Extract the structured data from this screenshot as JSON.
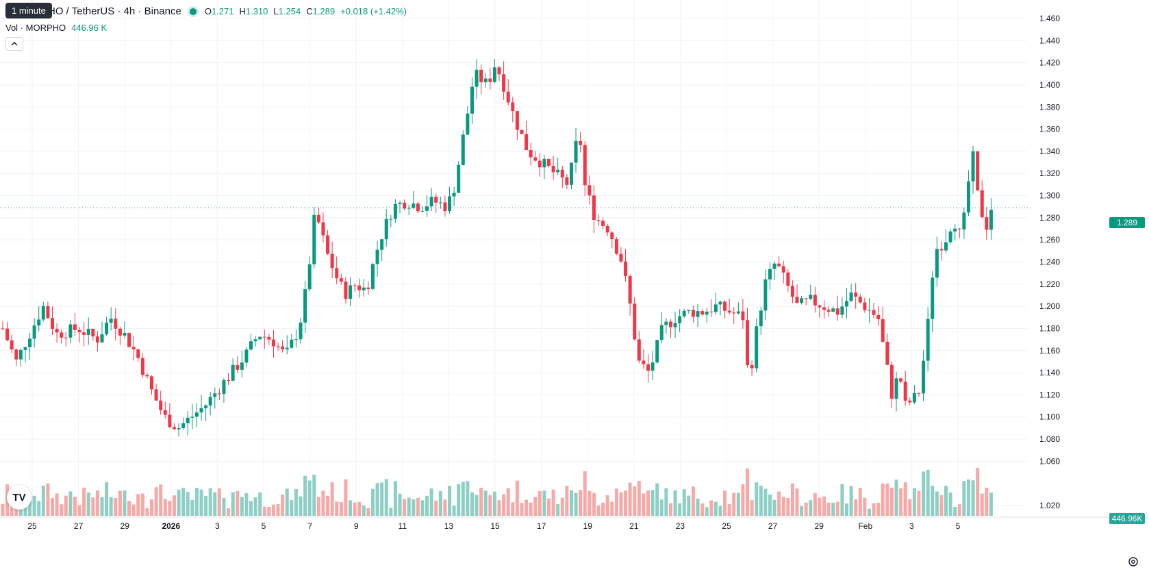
{
  "tooltip": "1 minute",
  "header": {
    "symbol": "HO / TetherUS · 4h · Binance",
    "o_label": "O",
    "o_value": "1.271",
    "h_label": "H",
    "h_value": "1.310",
    "l_label": "L",
    "l_value": "1.254",
    "c_label": "C",
    "c_value": "1.289",
    "change": "+0.018 (+1.42%)"
  },
  "volume_legend": {
    "label": "Vol · MORPHO",
    "value": "446.96 K"
  },
  "price_tags": {
    "last_price": "1.289",
    "last_volume": "446.96K"
  },
  "colors": {
    "up": "#089981",
    "down": "#F23645",
    "up_vol": "#8DCFC4",
    "down_vol": "#F7A9A7"
  },
  "icons": {
    "logo": "tradingview-logo-icon",
    "collapse": "chevron-up-icon",
    "settings": "gear-icon"
  },
  "chart_data": {
    "type": "candlestick",
    "y_axis_labels": [
      "1.460",
      "1.440",
      "1.420",
      "1.400",
      "1.380",
      "1.360",
      "1.340",
      "1.320",
      "1.300",
      "1.280",
      "1.260",
      "1.240",
      "1.220",
      "1.200",
      "1.180",
      "1.160",
      "1.140",
      "1.120",
      "1.100",
      "1.080",
      "1.060",
      "1.020"
    ],
    "ylim": [
      1.01,
      1.47
    ],
    "x_axis_labels": [
      "25",
      "27",
      "29",
      "2026",
      "3",
      "5",
      "7",
      "9",
      "11",
      "13",
      "15",
      "17",
      "19",
      "21",
      "23",
      "25",
      "27",
      "29",
      "Feb",
      "3",
      "5"
    ],
    "last_price": 1.289,
    "grid": true,
    "close_path": [
      [
        0,
        1.18
      ],
      [
        0.5,
        1.15
      ],
      [
        1.0,
        1.175
      ],
      [
        1.5,
        1.2
      ],
      [
        2.0,
        1.175
      ],
      [
        2.8,
        1.18
      ],
      [
        3.5,
        1.17
      ],
      [
        4.0,
        1.19
      ],
      [
        4.5,
        1.175
      ],
      [
        5.0,
        1.155
      ],
      [
        5.5,
        1.125
      ],
      [
        6.0,
        1.1
      ],
      [
        6.5,
        1.09
      ],
      [
        7.0,
        1.1
      ],
      [
        7.5,
        1.11
      ],
      [
        8.0,
        1.125
      ],
      [
        8.5,
        1.14
      ],
      [
        9.0,
        1.155
      ],
      [
        9.5,
        1.175
      ],
      [
        10.0,
        1.17
      ],
      [
        10.5,
        1.155
      ],
      [
        11.0,
        1.18
      ],
      [
        11.3,
        1.22
      ],
      [
        11.6,
        1.285
      ],
      [
        11.8,
        1.27
      ],
      [
        12.0,
        1.25
      ],
      [
        12.5,
        1.22
      ],
      [
        12.8,
        1.21
      ],
      [
        13.0,
        1.22
      ],
      [
        13.5,
        1.215
      ],
      [
        14.0,
        1.26
      ],
      [
        14.5,
        1.29
      ],
      [
        15.0,
        1.295
      ],
      [
        15.5,
        1.29
      ],
      [
        16.0,
        1.295
      ],
      [
        16.5,
        1.29
      ],
      [
        16.8,
        1.31
      ],
      [
        17.0,
        1.34
      ],
      [
        17.3,
        1.38
      ],
      [
        17.5,
        1.41
      ],
      [
        18.0,
        1.4
      ],
      [
        18.3,
        1.42
      ],
      [
        18.6,
        1.4
      ],
      [
        19.0,
        1.37
      ],
      [
        19.5,
        1.34
      ],
      [
        20.0,
        1.33
      ],
      [
        20.5,
        1.32
      ],
      [
        21.0,
        1.31
      ],
      [
        21.4,
        1.36
      ],
      [
        21.6,
        1.31
      ],
      [
        22.0,
        1.28
      ],
      [
        22.5,
        1.27
      ],
      [
        23.0,
        1.24
      ],
      [
        23.3,
        1.2
      ],
      [
        23.6,
        1.15
      ],
      [
        24.0,
        1.14
      ],
      [
        24.5,
        1.18
      ],
      [
        25.0,
        1.19
      ],
      [
        25.5,
        1.195
      ],
      [
        26.0,
        1.195
      ],
      [
        26.5,
        1.2
      ],
      [
        27.0,
        1.195
      ],
      [
        27.5,
        1.19
      ],
      [
        27.7,
        1.13
      ],
      [
        28.0,
        1.18
      ],
      [
        28.3,
        1.22
      ],
      [
        28.7,
        1.24
      ],
      [
        29.0,
        1.225
      ],
      [
        29.5,
        1.2
      ],
      [
        30.0,
        1.205
      ],
      [
        30.5,
        1.2
      ],
      [
        31.0,
        1.195
      ],
      [
        31.5,
        1.21
      ],
      [
        32.0,
        1.2
      ],
      [
        32.5,
        1.19
      ],
      [
        32.8,
        1.15
      ],
      [
        33.0,
        1.12
      ],
      [
        33.3,
        1.14
      ],
      [
        33.5,
        1.11
      ],
      [
        34.0,
        1.12
      ],
      [
        34.3,
        1.17
      ],
      [
        34.6,
        1.25
      ],
      [
        35.0,
        1.26
      ],
      [
        35.3,
        1.28
      ],
      [
        35.6,
        1.26
      ],
      [
        35.8,
        1.3
      ],
      [
        36.0,
        1.34
      ],
      [
        36.2,
        1.3
      ],
      [
        36.5,
        1.27
      ],
      [
        36.7,
        1.289
      ]
    ],
    "volume_range": [
      0,
      120
    ]
  }
}
